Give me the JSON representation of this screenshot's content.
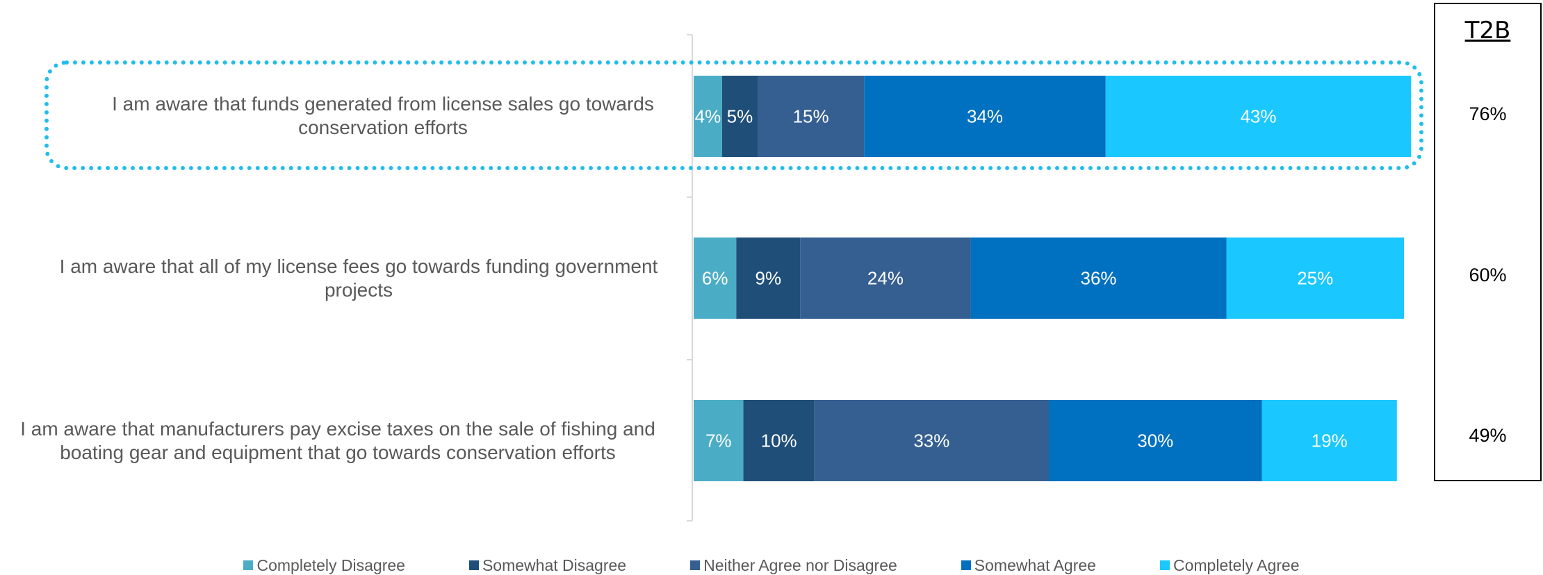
{
  "chart_data": {
    "type": "bar",
    "orientation": "horizontal",
    "stacked": true,
    "categories": [
      "I am aware that funds generated from license sales go towards conservation efforts",
      "I am aware that all of my license fees go towards funding government projects",
      "I am aware that manufacturers pay excise taxes on the sale of fishing and boating gear and equipment that go towards conservation efforts"
    ],
    "series": [
      {
        "name": "Completely Disagree",
        "color": "#4BACC6",
        "values": [
          4,
          6,
          7
        ],
        "labels": [
          "4%",
          "6%",
          "7%"
        ]
      },
      {
        "name": "Somewhat Disagree",
        "color": "#1F4E79",
        "values": [
          5,
          9,
          10
        ],
        "labels": [
          "5%",
          "9%",
          "10%"
        ]
      },
      {
        "name": "Neither Agree nor Disagree",
        "color": "#355F91",
        "values": [
          15,
          24,
          33
        ],
        "labels": [
          "15%",
          "24%",
          "33%"
        ]
      },
      {
        "name": "Somewhat Agree",
        "color": "#0070C0",
        "values": [
          34,
          36,
          30
        ],
        "labels": [
          "34%",
          "36%",
          "30%"
        ]
      },
      {
        "name": "Completely Agree",
        "color": "#1AC8FF",
        "values": [
          43,
          25,
          19
        ],
        "labels": [
          "43%",
          "25%",
          "19%"
        ]
      }
    ],
    "grid": false,
    "legend_position": "bottom",
    "highlighted_category": 0
  },
  "labels": {
    "row0": "I am aware that funds generated from license sales go towards conservation efforts",
    "row1": "I am aware that all of my license fees go towards funding government projects",
    "row2": "I am aware that manufacturers pay excise taxes on the sale of fishing and boating gear and equipment that go towards conservation efforts"
  },
  "t2b": {
    "title": "T2B",
    "values": [
      "76%",
      "60%",
      "49%"
    ]
  },
  "legend": {
    "items": [
      "Completely Disagree",
      "Somewhat Disagree",
      "Neither Agree nor Disagree",
      "Somewhat Agree",
      "Completely Agree"
    ]
  }
}
